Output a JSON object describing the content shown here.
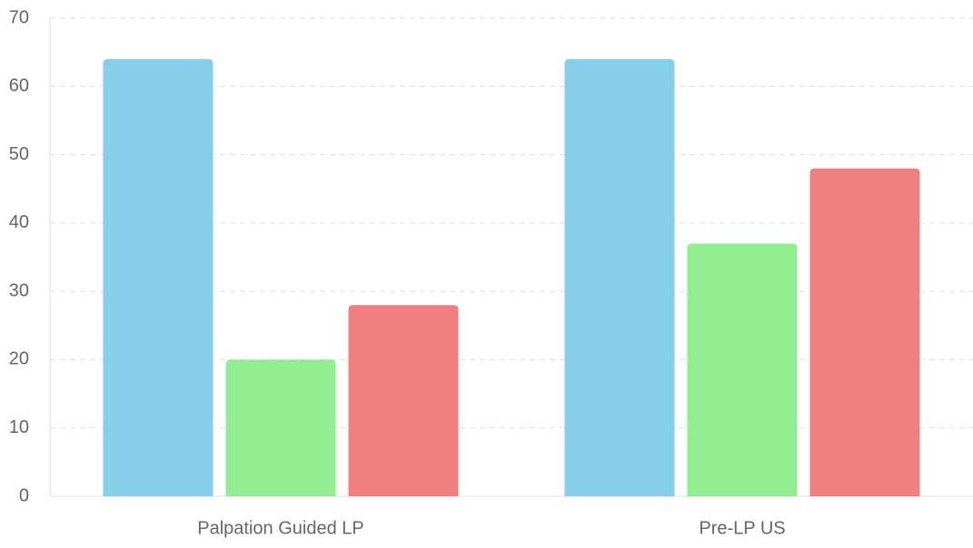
{
  "chart_data": {
    "type": "bar",
    "categories": [
      "Palpation Guided LP",
      "Pre-LP US"
    ],
    "series": [
      {
        "color": "#87ceeb",
        "values": [
          64,
          64
        ]
      },
      {
        "color": "#90ee90",
        "values": [
          20,
          37
        ]
      },
      {
        "color": "#f08080",
        "values": [
          28,
          48
        ]
      }
    ],
    "ylim": [
      0,
      70
    ],
    "yticks": [
      0,
      10,
      20,
      30,
      40,
      50,
      60,
      70
    ],
    "grid": true
  }
}
